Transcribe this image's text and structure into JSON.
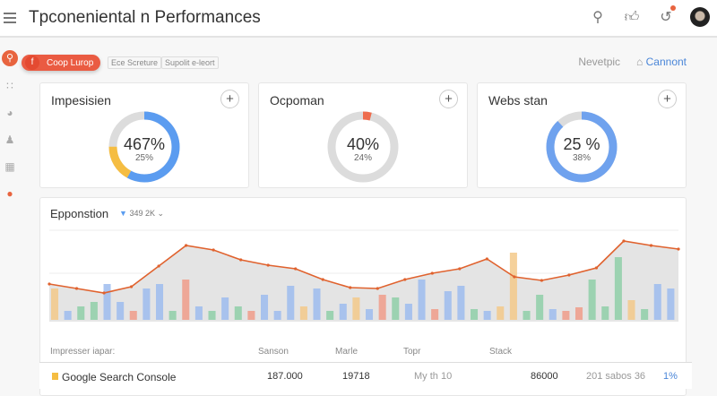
{
  "header": {
    "title": "Tpconeniental n Performances",
    "icons": [
      "search-icon",
      "thumbs-up-icon",
      "notification-icon",
      "avatar"
    ]
  },
  "sidebar": {
    "icons": [
      "search-icon",
      "network-icon",
      "analytics-icon",
      "user-icon",
      "calendar-icon",
      "alert-dot-icon"
    ]
  },
  "filters": {
    "chip_label": "Coop Lurop",
    "chip_icon": "f",
    "tags": [
      "Ece Screture",
      "Supolit e-leort"
    ],
    "link1": "Nevetpic",
    "link2": "Cannont"
  },
  "cards": [
    {
      "title": "Impesisien",
      "value": "467%",
      "sub": "25%",
      "segments": [
        {
          "pct": 0.58,
          "color": "#5b9cf0"
        },
        {
          "pct": 0.17,
          "color": "#f5bd42"
        }
      ],
      "rest": "#dcdcdc"
    },
    {
      "title": "Ocpoman",
      "value": "40%",
      "sub": "24%",
      "segments": [
        {
          "pct": 0.1,
          "color": "#ee6c4d"
        }
      ],
      "rest": "#dcdcdc",
      "start": -0.06
    },
    {
      "title": "Webs stan",
      "value": "25 %",
      "sub": "38%",
      "segments": [
        {
          "pct": 0.88,
          "color": "#6fa2ee"
        }
      ],
      "rest": "#dcdcdc"
    }
  ],
  "chart_panel": {
    "title": "Epponstion",
    "metric": "349 2K"
  },
  "chart_data": {
    "type": "line",
    "title": "",
    "xlabel": "",
    "ylabel": "",
    "line_values": [
      40,
      35,
      30,
      37,
      60,
      83,
      78,
      67,
      61,
      57,
      45,
      36,
      35,
      45,
      52,
      57,
      68,
      48,
      44,
      50,
      58,
      88,
      83,
      79
    ],
    "bar_values": [
      [
        35,
        "y"
      ],
      [
        10,
        "b"
      ],
      [
        15,
        "g"
      ],
      [
        20,
        "g"
      ],
      [
        40,
        "b"
      ],
      [
        20,
        "b"
      ],
      [
        10,
        "r"
      ],
      [
        35,
        "b"
      ],
      [
        40,
        "b"
      ],
      [
        10,
        "g"
      ],
      [
        45,
        "r"
      ],
      [
        15,
        "b"
      ],
      [
        10,
        "g"
      ],
      [
        25,
        "b"
      ],
      [
        15,
        "g"
      ],
      [
        10,
        "r"
      ],
      [
        28,
        "b"
      ],
      [
        10,
        "b"
      ],
      [
        38,
        "b"
      ],
      [
        15,
        "y"
      ],
      [
        35,
        "b"
      ],
      [
        10,
        "g"
      ],
      [
        18,
        "b"
      ],
      [
        25,
        "y"
      ],
      [
        12,
        "b"
      ],
      [
        28,
        "r"
      ],
      [
        25,
        "g"
      ],
      [
        18,
        "b"
      ],
      [
        45,
        "b"
      ],
      [
        12,
        "r"
      ],
      [
        32,
        "b"
      ],
      [
        38,
        "b"
      ],
      [
        12,
        "g"
      ],
      [
        10,
        "b"
      ],
      [
        15,
        "y"
      ],
      [
        75,
        "y"
      ],
      [
        10,
        "g"
      ],
      [
        28,
        "g"
      ],
      [
        12,
        "b"
      ],
      [
        10,
        "r"
      ],
      [
        14,
        "r"
      ],
      [
        45,
        "g"
      ],
      [
        15,
        "g"
      ],
      [
        70,
        "g"
      ],
      [
        22,
        "y"
      ],
      [
        12,
        "g"
      ],
      [
        40,
        "b"
      ],
      [
        35,
        "b"
      ]
    ],
    "bar_colors": {
      "b": "#9dbcee",
      "g": "#8fcfa8",
      "y": "#f3c98a",
      "r": "#f09c8a"
    },
    "area_fill": "#e4e4e4",
    "line_color": "#e0622e",
    "grid": true
  },
  "table": {
    "headers": [
      "Impresser iapar:",
      "Sanson",
      "Marle",
      "Topr",
      "Stack"
    ],
    "rows": [
      {
        "name": "Google Search Console",
        "c1": "187.000",
        "c2": "19718",
        "c3": "My th 10",
        "c4": "86000",
        "c5": "201 sabos 36",
        "c6": "1%",
        "color": "#f5bd42"
      }
    ]
  }
}
